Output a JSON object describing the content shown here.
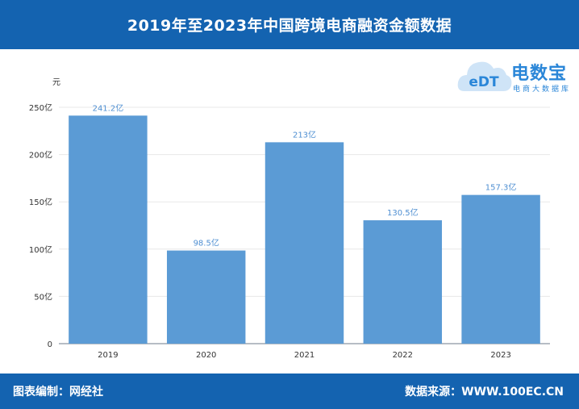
{
  "header": {
    "title": "2019年至2023年中国跨境电商融资金额数据"
  },
  "logo": {
    "mark": "eDT",
    "title": "电数宝",
    "subtitle": "电商大数据库"
  },
  "footer": {
    "left": "图表编制：网经社",
    "right": "数据来源：WWW.100EC.CN"
  },
  "colors": {
    "header_bg": "#1463b0",
    "bar": "#5b9bd5",
    "value_label": "#4f8fd2"
  },
  "chart_data": {
    "type": "bar",
    "title": "2019年至2023年中国跨境电商融资金额数据",
    "ylabel": "元",
    "xlabel": "",
    "categories": [
      "2019",
      "2020",
      "2021",
      "2022",
      "2023"
    ],
    "values": [
      241.2,
      98.5,
      213,
      130.5,
      157.3
    ],
    "value_labels": [
      "241.2亿",
      "98.5亿",
      "213亿",
      "130.5亿",
      "157.3亿"
    ],
    "ylim": [
      0,
      250
    ],
    "yticks": [
      0,
      50,
      100,
      150,
      200,
      250
    ],
    "ytick_labels": [
      "0",
      "50亿",
      "100亿",
      "150亿",
      "200亿",
      "250亿"
    ],
    "grid": true,
    "legend": "none"
  }
}
